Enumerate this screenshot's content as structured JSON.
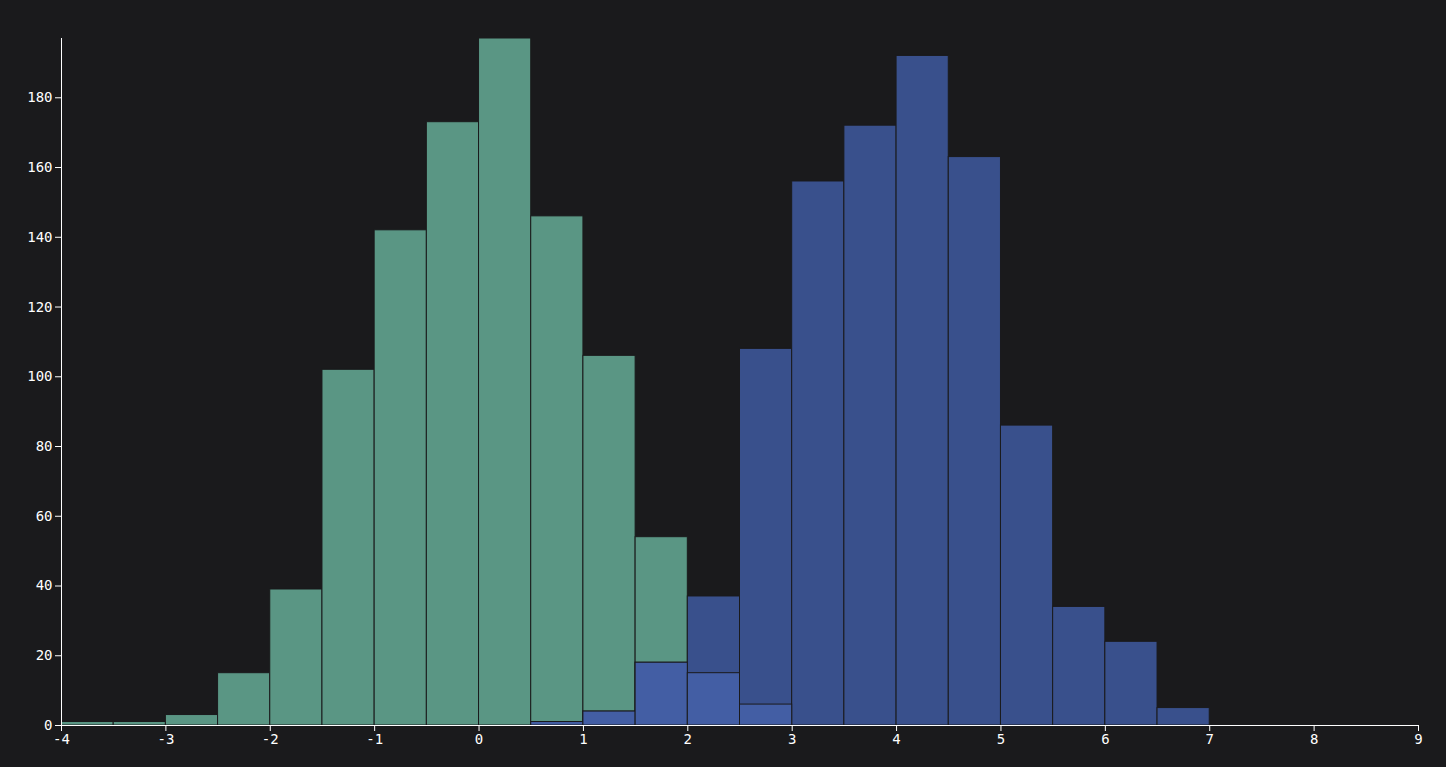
{
  "chart_data": {
    "type": "histogram",
    "bins": [
      -4,
      -3.5,
      -3,
      -2.5,
      -2,
      -1.5,
      -1,
      -0.5,
      0,
      0.5,
      1,
      1.5,
      2,
      2.5,
      3,
      3.5,
      4,
      4.5,
      5,
      5.5,
      6,
      6.5,
      7
    ],
    "series": [
      {
        "color": "#5a9684",
        "values": [
          1,
          1,
          3,
          15,
          39,
          102,
          142,
          173,
          197,
          146,
          106,
          54,
          15,
          6,
          0,
          0,
          0,
          0,
          0,
          0,
          0,
          0
        ]
      },
      {
        "color": "#39508c",
        "values": [
          0,
          0,
          0,
          0,
          0,
          0,
          0,
          0,
          0,
          1,
          4,
          18,
          37,
          108,
          156,
          172,
          192,
          163,
          86,
          34,
          24,
          5
        ]
      }
    ],
    "xlim": [
      -4,
      9
    ],
    "xticks": [
      -4,
      -3,
      -2,
      -1,
      0,
      1,
      2,
      3,
      4,
      5,
      6,
      7,
      8,
      9
    ],
    "ylim": [
      0,
      197
    ],
    "yticks": [
      0,
      20,
      40,
      60,
      80,
      100,
      120,
      140,
      160,
      180
    ],
    "grid": false
  }
}
